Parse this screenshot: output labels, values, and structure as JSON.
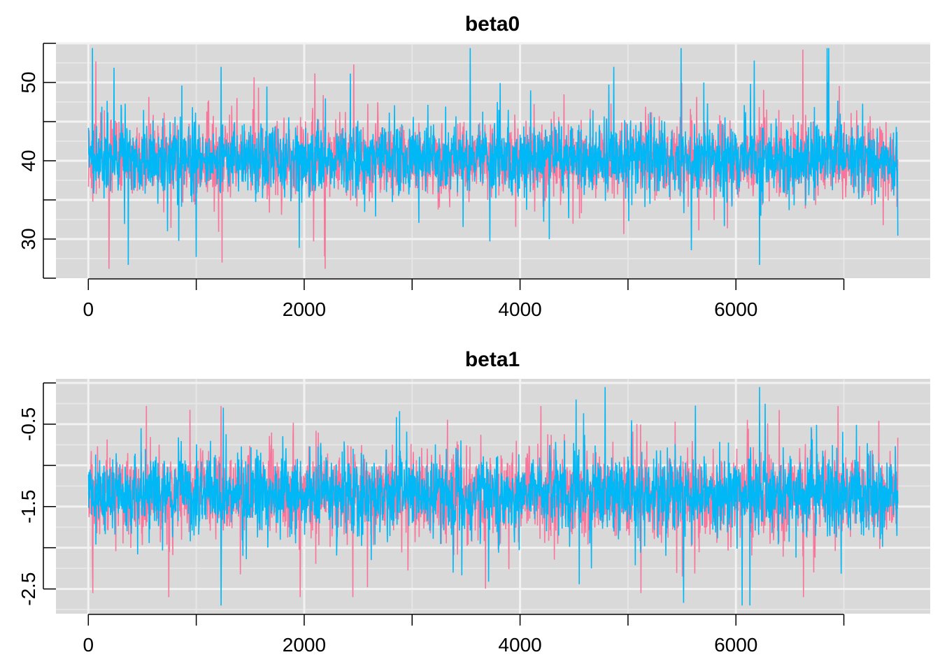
{
  "colors": {
    "panel_bg": "#D9D9D9",
    "grid_major": "#F2F2F2",
    "grid_minor": "#E6E6E6",
    "chain1": "#F8769B",
    "chain2": "#00B8F5"
  },
  "chart_data": [
    {
      "type": "line",
      "title": "beta0",
      "xlabel": "",
      "ylabel": "",
      "x_range": [
        1,
        7500
      ],
      "xlim": [
        -300,
        7800
      ],
      "ylim": [
        25,
        55
      ],
      "xticks": [
        0,
        2000,
        4000,
        6000
      ],
      "yticks": [
        30,
        40,
        50
      ],
      "x_minor_grid": [
        1000,
        3000,
        5000,
        7000
      ],
      "y_minor_grid": [
        27.5,
        32.5,
        35,
        37.5,
        42.5,
        45,
        47.5,
        52.5,
        55
      ],
      "grid": true,
      "legend": "none",
      "series": [
        {
          "color": "#F8769B",
          "center": 40.2,
          "sd": 2.3,
          "min": 26.2,
          "max": 54.2,
          "spikes": [
            [
              70,
              52.7
            ],
            [
              190,
              26.2
            ],
            [
              1240,
              27.0
            ],
            [
              2460,
              52.3
            ],
            [
              6620,
              54.2
            ],
            [
              6850,
              50.0
            ]
          ]
        },
        {
          "color": "#00B8F5",
          "center": 40.2,
          "sd": 2.1,
          "min": 26.7,
          "max": 54.4,
          "spikes": [
            [
              1000,
              27.7
            ],
            [
              1230,
              52.0
            ],
            [
              3720,
              29.7
            ],
            [
              4870,
              52.0
            ],
            [
              6170,
              52.8
            ],
            [
              6220,
              26.7
            ],
            [
              6860,
              54.4
            ]
          ]
        }
      ]
    },
    {
      "type": "line",
      "title": "beta1",
      "xlabel": "",
      "ylabel": "",
      "x_range": [
        1,
        7500
      ],
      "xlim": [
        -300,
        7800
      ],
      "ylim": [
        -2.8,
        0.05
      ],
      "xticks": [
        0,
        2000,
        4000,
        6000
      ],
      "yticks": [
        -2.5,
        -1.5,
        -0.5
      ],
      "y_minor_grid": [
        -2.75,
        -2.25,
        -1.75,
        -1.25,
        -0.75,
        -0.25
      ],
      "y_major_grid": [
        -2.5,
        -2.0,
        -1.5,
        -1.0,
        -0.5,
        0.0
      ],
      "x_minor_grid": [
        1000,
        3000,
        5000,
        7000
      ],
      "grid": true,
      "legend": "none",
      "series": [
        {
          "color": "#F8769B",
          "center": -1.35,
          "sd": 0.24,
          "min": -2.6,
          "max": -0.28,
          "spikes": [
            [
              40,
              -2.55
            ],
            [
              1230,
              -0.28
            ],
            [
              2450,
              -2.6
            ],
            [
              5120,
              -2.55
            ]
          ]
        },
        {
          "color": "#00B8F5",
          "center": -1.35,
          "sd": 0.22,
          "min": -2.7,
          "max": -0.05,
          "spikes": [
            [
              1230,
              -2.7
            ],
            [
              1250,
              -0.3
            ],
            [
              4520,
              -0.2
            ],
            [
              6130,
              -2.7
            ],
            [
              6220,
              -0.05
            ]
          ]
        }
      ]
    }
  ]
}
